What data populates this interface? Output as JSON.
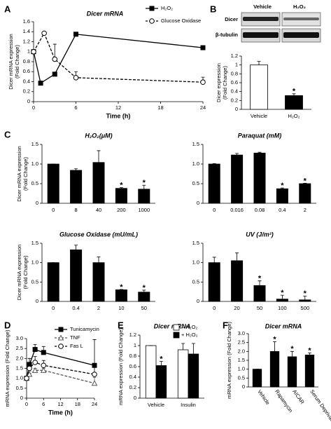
{
  "chart_data": [
    {
      "panel": "A",
      "type": "line",
      "title": "Dicer mRNA",
      "ylabel": "Dicer mRNA expression",
      "ylabel_sub": "(Fold Change)",
      "xlabel": "Time (h)",
      "xlim": [
        0,
        24
      ],
      "xticks": [
        0,
        6,
        12,
        18,
        24
      ],
      "ylim": [
        0,
        1.6
      ],
      "yticks": [
        0,
        0.2,
        0.4,
        0.6,
        0.8,
        1,
        1.2,
        1.4,
        1.6
      ],
      "legend": "upper right",
      "series": [
        {
          "name": "H₂O₂",
          "color": "#000000",
          "fill": "#000000",
          "marker": "square",
          "dash": false,
          "x": [
            0,
            1,
            3,
            6,
            24
          ],
          "values": [
            1.0,
            0.37,
            0.55,
            1.35,
            1.08
          ],
          "errors": [
            0,
            0.02,
            0.03,
            0.03,
            0.03
          ]
        },
        {
          "name": "Glucose Oxidase",
          "color": "#000000",
          "fill": "#ffffff",
          "marker": "circle",
          "dash": true,
          "x": [
            0,
            1.5,
            3,
            6,
            24
          ],
          "values": [
            1.0,
            1.37,
            0.85,
            0.48,
            0.39
          ],
          "errors": [
            0,
            0.02,
            0.3,
            0.12,
            0.1
          ]
        }
      ]
    },
    {
      "panel": "B",
      "type": "bar",
      "blot_columns": [
        "Vehicle",
        "H₂O₂"
      ],
      "blot_rows": [
        "Dicer",
        "β-tubulin"
      ],
      "ylabel": "Dicer expression",
      "ylabel_sub": "(Fold Change)",
      "categories": [
        "Vehicle",
        "H₂O₂"
      ],
      "values": [
        1.0,
        0.31
      ],
      "errors": [
        0.08,
        0.04
      ],
      "colors": [
        "#ffffff",
        "#000000"
      ],
      "annotations": [
        null,
        "*"
      ],
      "ylim": [
        0,
        1.2
      ],
      "yticks": [
        0,
        0.2,
        0.4,
        0.6,
        0.8,
        1,
        1.2
      ]
    },
    {
      "panel": "C",
      "type": "bar",
      "title": "H₂O₂(μM)",
      "ylabel": "Dicer mRNA expression",
      "ylabel_sub": "(Fold Change)",
      "categories": [
        "0",
        "8",
        "40",
        "200",
        "1000"
      ],
      "values": [
        1.0,
        0.84,
        1.04,
        0.38,
        0.36
      ],
      "errors": [
        0,
        0.04,
        0.3,
        0.02,
        0.1
      ],
      "color": "#000000",
      "annotations": [
        null,
        null,
        null,
        "*",
        "*"
      ],
      "ylim": [
        0,
        1.5
      ],
      "yticks": [
        0,
        0.5,
        {
          "value": 1,
          "label": "1.0"
        },
        1.5
      ]
    },
    {
      "type": "bar",
      "title": "Paraquat (mM)",
      "categories": [
        "0",
        "0.016",
        "0.08",
        "0.4",
        "2"
      ],
      "values": [
        1.0,
        1.23,
        1.28,
        0.37,
        0.5
      ],
      "errors": [
        0.01,
        0.04,
        0.02,
        0.02,
        0.01
      ],
      "color": "#000000",
      "annotations": [
        null,
        null,
        null,
        "*",
        "*"
      ],
      "ylim": [
        0,
        1.5
      ],
      "yticks": [
        0,
        0.5,
        {
          "value": 1,
          "label": "1.0"
        },
        1.5
      ]
    },
    {
      "type": "bar",
      "title": "Glucose Oxidase (mU/mL)",
      "ylabel": "Dicer mRNA expression",
      "ylabel_sub": "(Fold Change)",
      "categories": [
        "0",
        "0.4",
        "2",
        "10",
        "50"
      ],
      "values": [
        1.0,
        1.33,
        1.0,
        0.3,
        0.24
      ],
      "errors": [
        0,
        0.12,
        0.15,
        0.01,
        0.05
      ],
      "color": "#000000",
      "annotations": [
        null,
        null,
        null,
        "*",
        "*"
      ],
      "ylim": [
        0,
        1.5
      ],
      "yticks": [
        0,
        0.5,
        {
          "value": 1,
          "label": "1.0"
        },
        1.5
      ]
    },
    {
      "type": "bar",
      "title": "UV (J/m²)",
      "categories": [
        "0",
        "20",
        "50",
        "100",
        "500"
      ],
      "values": [
        1.0,
        1.05,
        0.41,
        0.06,
        0.04
      ],
      "errors": [
        0.14,
        0.2,
        0.12,
        0.1,
        0.1
      ],
      "color": "#000000",
      "annotations": [
        null,
        null,
        "*",
        "*",
        "*"
      ],
      "ylim": [
        0,
        1.5
      ],
      "yticks": [
        0,
        0.5,
        {
          "value": 1,
          "label": "1.0"
        },
        1.5
      ]
    },
    {
      "panel": "D",
      "type": "line",
      "ylabel": "mRNA expression (Fold Change)",
      "xlabel": "Time (h)",
      "xlim": [
        0,
        24
      ],
      "xticks": [
        0,
        6,
        12,
        18,
        24
      ],
      "ylim": [
        0,
        3
      ],
      "yticks": [
        0,
        0.5,
        {
          "value": 1,
          "label": "1.0"
        },
        1.5,
        {
          "value": 2,
          "label": "2.0"
        },
        2.5,
        {
          "value": 3,
          "label": "3.0"
        }
      ],
      "legend": "upper right",
      "series": [
        {
          "name": "Tunicamycin",
          "color": "#000000",
          "fill": "#000000",
          "marker": "square",
          "dash": false,
          "x": [
            0,
            1,
            3,
            6,
            24
          ],
          "values": [
            1.0,
            1.7,
            2.45,
            2.3,
            1.65
          ],
          "errors": [
            0,
            0.3,
            0.25,
            0.3,
            1.3
          ]
        },
        {
          "name": "TNF",
          "color": "#555555",
          "fill": "#ffffff",
          "marker": "triangle",
          "dash": true,
          "x": [
            0,
            1,
            3,
            6,
            24
          ],
          "values": [
            1.0,
            1.2,
            1.4,
            1.4,
            0.75
          ],
          "errors": [
            0,
            0.15,
            0.1,
            0.1,
            0.3
          ]
        },
        {
          "name": "Fas L",
          "color": "#000000",
          "fill": "#ffffff",
          "marker": "circle",
          "dash": true,
          "x": [
            0,
            1,
            3,
            6,
            24
          ],
          "values": [
            1.0,
            1.5,
            1.8,
            1.65,
            1.2
          ],
          "errors": [
            0,
            0.2,
            0.3,
            0.25,
            0.35
          ]
        }
      ]
    },
    {
      "panel": "E",
      "type": "bar",
      "title": "Dicer mRNA",
      "ylabel": "mRNA expression (Fold Change)",
      "categories": [
        "Vehicle",
        "Insulin"
      ],
      "legend": "upper right",
      "series": [
        {
          "name": "– H₂O₂",
          "color": "#ffffff",
          "values": [
            1.0,
            0.92
          ],
          "errors": [
            0,
            0.12
          ],
          "annotations": [
            null,
            null
          ]
        },
        {
          "name": "+ H₂O₂",
          "color": "#000000",
          "values": [
            0.62,
            0.84
          ],
          "errors": [
            0.08,
            0.2
          ],
          "annotations": [
            "*",
            null
          ]
        }
      ],
      "ylim": [
        0,
        1.2
      ],
      "yticks": [
        0,
        0.2,
        0.4,
        0.6,
        0.8,
        1,
        1.2
      ]
    },
    {
      "panel": "F",
      "type": "bar",
      "title": "Dicer mRNA",
      "ylabel": "mRNA expression (Fold Change)",
      "categories": [
        "Vehicle",
        "Rapamycin",
        "AICAR",
        "Serum Deprivation"
      ],
      "values": [
        1.0,
        2.0,
        1.7,
        1.8
      ],
      "errors": [
        0,
        0.55,
        0.3,
        0.12
      ],
      "color": "#000000",
      "annotations": [
        null,
        "*",
        "*",
        "*"
      ],
      "ylim": [
        0,
        3
      ],
      "yticks": [
        0,
        0.5,
        {
          "value": 1,
          "label": "1.0"
        },
        1.5,
        {
          "value": 2,
          "label": "2.0"
        },
        2.5,
        {
          "value": 3,
          "label": "3.0"
        }
      ]
    }
  ]
}
